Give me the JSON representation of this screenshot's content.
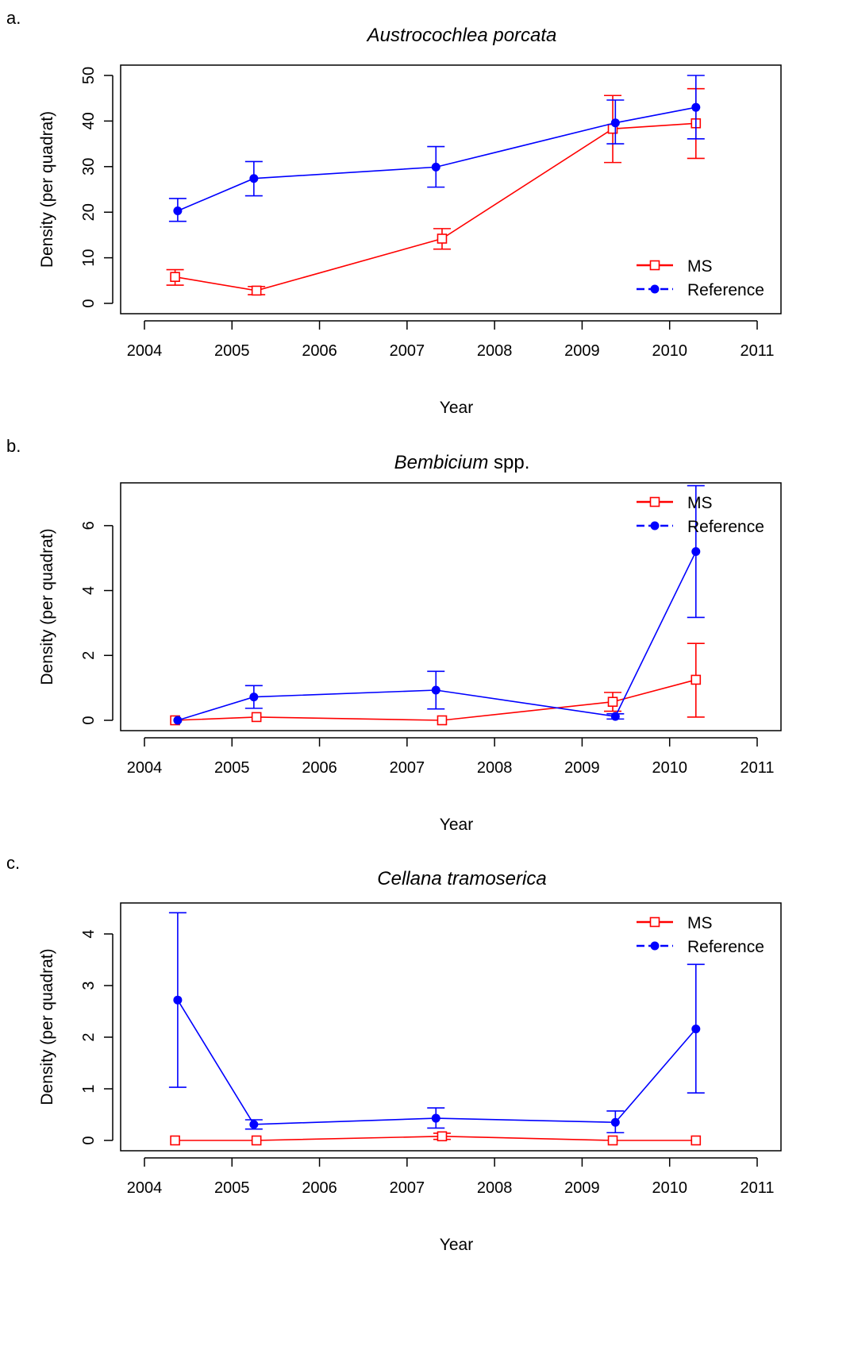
{
  "chart_data": [
    {
      "panel_label": "a.",
      "type": "line",
      "title": "Austrocochlea porcata",
      "title_italic": true,
      "title_suffix": "",
      "xlabel": "Year",
      "ylabel": "Density (per quadrat)",
      "xlim": [
        2004,
        2011
      ],
      "xticks": [
        2004,
        2005,
        2006,
        2007,
        2008,
        2009,
        2010,
        2011
      ],
      "ylim": [
        0,
        50
      ],
      "yticks": [
        0,
        10,
        20,
        30,
        40,
        50
      ],
      "grid": false,
      "legend_position": "bottom-right",
      "series": [
        {
          "name": "MS",
          "color": "#ff0000",
          "marker": "open-square",
          "points": [
            {
              "x": 2004.35,
              "y": 5.8,
              "lo": 4.0,
              "hi": 7.4
            },
            {
              "x": 2005.28,
              "y": 2.8,
              "lo": 1.9,
              "hi": 3.7
            },
            {
              "x": 2007.4,
              "y": 14.2,
              "lo": 11.9,
              "hi": 16.4
            },
            {
              "x": 2009.35,
              "y": 38.3,
              "lo": 30.9,
              "hi": 45.6
            },
            {
              "x": 2010.3,
              "y": 39.5,
              "lo": 31.8,
              "hi": 47.1
            }
          ]
        },
        {
          "name": "Reference",
          "color": "#0000ff",
          "marker": "filled-circle",
          "points": [
            {
              "x": 2004.38,
              "y": 20.3,
              "lo": 18.0,
              "hi": 23.0
            },
            {
              "x": 2005.25,
              "y": 27.4,
              "lo": 23.6,
              "hi": 31.1
            },
            {
              "x": 2007.33,
              "y": 29.9,
              "lo": 25.5,
              "hi": 34.4
            },
            {
              "x": 2009.38,
              "y": 39.6,
              "lo": 35.0,
              "hi": 44.6
            },
            {
              "x": 2010.3,
              "y": 43.0,
              "lo": 36.1,
              "hi": 50.0
            }
          ]
        }
      ]
    },
    {
      "panel_label": "b.",
      "type": "line",
      "title": "Bembicium",
      "title_italic": true,
      "title_suffix": " spp.",
      "xlabel": "Year",
      "ylabel": "Density (per quadrat)",
      "xlim": [
        2004,
        2011
      ],
      "xticks": [
        2004,
        2005,
        2006,
        2007,
        2008,
        2009,
        2010,
        2011
      ],
      "ylim": [
        0,
        7
      ],
      "yticks": [
        0,
        2,
        4,
        6
      ],
      "grid": false,
      "legend_position": "top-right",
      "series": [
        {
          "name": "MS",
          "color": "#ff0000",
          "marker": "open-square",
          "points": [
            {
              "x": 2004.35,
              "y": 0.0
            },
            {
              "x": 2005.28,
              "y": 0.1
            },
            {
              "x": 2007.4,
              "y": 0.0
            },
            {
              "x": 2009.35,
              "y": 0.57,
              "lo": 0.28,
              "hi": 0.86
            },
            {
              "x": 2010.3,
              "y": 1.25,
              "lo": 0.1,
              "hi": 2.37
            }
          ]
        },
        {
          "name": "Reference",
          "color": "#0000ff",
          "marker": "filled-circle",
          "points": [
            {
              "x": 2004.38,
              "y": 0.0
            },
            {
              "x": 2005.25,
              "y": 0.72,
              "lo": 0.37,
              "hi": 1.07
            },
            {
              "x": 2007.33,
              "y": 0.93,
              "lo": 0.35,
              "hi": 1.51
            },
            {
              "x": 2009.38,
              "y": 0.12,
              "lo": 0.04,
              "hi": 0.2
            },
            {
              "x": 2010.3,
              "y": 5.2,
              "lo": 3.17,
              "hi": 7.23
            }
          ]
        }
      ]
    },
    {
      "panel_label": "c.",
      "type": "line",
      "title": "Cellana tramoserica",
      "title_italic": true,
      "title_suffix": "",
      "xlabel": "Year",
      "ylabel": "Density (per quadrat)",
      "xlim": [
        2004,
        2011
      ],
      "xticks": [
        2004,
        2005,
        2006,
        2007,
        2008,
        2009,
        2010,
        2011
      ],
      "ylim": [
        0,
        4.4
      ],
      "yticks": [
        0,
        1,
        2,
        3,
        4
      ],
      "grid": false,
      "legend_position": "top-right",
      "series": [
        {
          "name": "MS",
          "color": "#ff0000",
          "marker": "open-square",
          "points": [
            {
              "x": 2004.35,
              "y": 0.0
            },
            {
              "x": 2005.28,
              "y": 0.0
            },
            {
              "x": 2007.4,
              "y": 0.08,
              "lo": 0.02,
              "hi": 0.14
            },
            {
              "x": 2009.35,
              "y": 0.0
            },
            {
              "x": 2010.3,
              "y": 0.0
            }
          ]
        },
        {
          "name": "Reference",
          "color": "#0000ff",
          "marker": "filled-circle",
          "points": [
            {
              "x": 2004.38,
              "y": 2.72,
              "lo": 1.03,
              "hi": 4.41
            },
            {
              "x": 2005.25,
              "y": 0.31,
              "lo": 0.22,
              "hi": 0.4
            },
            {
              "x": 2007.33,
              "y": 0.43,
              "lo": 0.24,
              "hi": 0.63
            },
            {
              "x": 2009.38,
              "y": 0.35,
              "lo": 0.15,
              "hi": 0.57
            },
            {
              "x": 2010.3,
              "y": 2.16,
              "lo": 0.92,
              "hi": 3.41
            }
          ]
        }
      ]
    }
  ]
}
